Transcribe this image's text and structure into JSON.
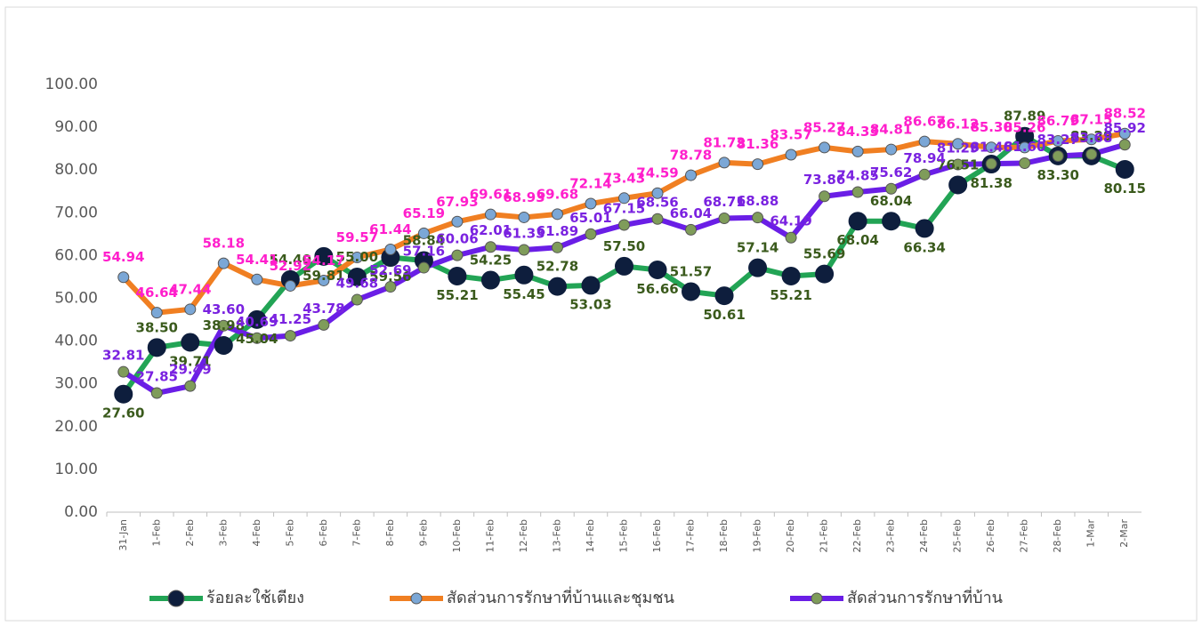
{
  "chart_data": {
    "type": "line",
    "categories": [
      "31-Jan",
      "1-Feb",
      "2-Feb",
      "3-Feb",
      "4-Feb",
      "5-Feb",
      "6-Feb",
      "7-Feb",
      "8-Feb",
      "9-Feb",
      "10-Feb",
      "11-Feb",
      "12-Feb",
      "13-Feb",
      "14-Feb",
      "15-Feb",
      "16-Feb",
      "17-Feb",
      "18-Feb",
      "19-Feb",
      "20-Feb",
      "21-Feb",
      "22-Feb",
      "23-Feb",
      "24-Feb",
      "25-Feb",
      "26-Feb",
      "27-Feb",
      "28-Feb",
      "1-Mar",
      "2-Mar"
    ],
    "ylim": [
      0,
      100
    ],
    "yticks": [
      {
        "value": 0,
        "label": "0.00"
      },
      {
        "value": 10,
        "label": "10.00"
      },
      {
        "value": 20,
        "label": "20.00"
      },
      {
        "value": 30,
        "label": "30.00"
      },
      {
        "value": 40,
        "label": "40.00"
      },
      {
        "value": 50,
        "label": "50.00"
      },
      {
        "value": 60,
        "label": "60.00"
      },
      {
        "value": 70,
        "label": "70.00"
      },
      {
        "value": 80,
        "label": "80.00"
      },
      {
        "value": 90,
        "label": "90.00"
      },
      {
        "value": 100,
        "label": "100.00"
      }
    ],
    "series": [
      {
        "name": "ร้อยละใช้เตียง",
        "color": "#22a455",
        "marker_color": "#0e1e3d",
        "label_color": "#3a5a1c",
        "values": [
          27.6,
          38.5,
          39.71,
          38.98,
          45.04,
          54.4,
          59.81,
          55.0,
          59.56,
          58.84,
          55.21,
          54.25,
          55.45,
          52.78,
          53.03,
          57.5,
          56.66,
          51.57,
          50.61,
          57.14,
          55.21,
          55.69,
          68.04,
          68.04,
          66.34,
          76.51,
          81.38,
          87.89,
          83.3,
          83.29,
          80.15
        ],
        "value_labels": [
          "27.60",
          "38.50",
          "39.71",
          "38.98",
          "45.04",
          "54.40",
          "59.81",
          "55.00",
          "59.56",
          "58.84",
          "55.21",
          "54.25",
          "55.45",
          "52.78",
          "53.03",
          "57.50",
          "56.66",
          "51.57",
          "50.61",
          "57.14",
          "55.21",
          "55.69",
          "68.04",
          "68.04",
          "66.34",
          "76.51",
          "81.38",
          "87.89",
          "83.30",
          "83.29",
          "80.15"
        ]
      },
      {
        "name": "สัดส่วนการรักษาที่บ้านและชุมชน",
        "color": "#f07f22",
        "marker_color": "#7ba7d6",
        "label_color": "#ff1fcc",
        "values": [
          54.94,
          46.64,
          47.44,
          58.18,
          54.41,
          52.92,
          54.17,
          59.57,
          61.44,
          65.19,
          67.93,
          69.61,
          68.93,
          69.68,
          72.14,
          73.43,
          74.59,
          78.78,
          81.73,
          81.36,
          83.57,
          85.27,
          84.33,
          84.81,
          86.67,
          86.12,
          85.3,
          85.26,
          86.79,
          87.15,
          88.52
        ],
        "value_labels": [
          "54.94",
          "46.64",
          "47.44",
          "58.18",
          "54.41",
          "52.92",
          "54.17",
          "59.57",
          "61.44",
          "65.19",
          "67.93",
          "69.61",
          "68.93",
          "69.68",
          "72.14",
          "73.43",
          "74.59",
          "78.78",
          "81.73",
          "81.36",
          "83.57",
          "85.27",
          "84.33",
          "84.81",
          "86.67",
          "86.12",
          "85.30",
          "85.26",
          "86.79",
          "87.15",
          "88.52"
        ]
      },
      {
        "name": "สัดส่วนการรักษาที่บ้าน",
        "color": "#6a1ee6",
        "marker_color": "#7f9c5a",
        "label_color": "#7a22e0",
        "values": [
          32.81,
          27.85,
          29.49,
          43.6,
          40.69,
          41.25,
          43.78,
          49.68,
          52.69,
          57.16,
          60.06,
          62.01,
          61.33,
          61.89,
          65.01,
          67.15,
          68.56,
          66.04,
          68.71,
          68.88,
          64.19,
          73.86,
          74.85,
          75.62,
          78.94,
          81.29,
          81.46,
          81.6,
          83.27,
          83.68,
          85.92
        ],
        "value_labels": [
          "32.81",
          "27.85",
          "29.49",
          "43.60",
          "40.69",
          "41.25",
          "43.78",
          "49.68",
          "52.69",
          "57.16",
          "60.06",
          "62.01",
          "61.33",
          "61.89",
          "65.01",
          "67.15",
          "68.56",
          "66.04",
          "68.71",
          "68.88",
          "64.19",
          "73.86",
          "74.85",
          "75.62",
          "78.94",
          "81.29",
          "81.46",
          "81.60",
          "83.27",
          "83.68",
          "85.92"
        ]
      }
    ]
  }
}
